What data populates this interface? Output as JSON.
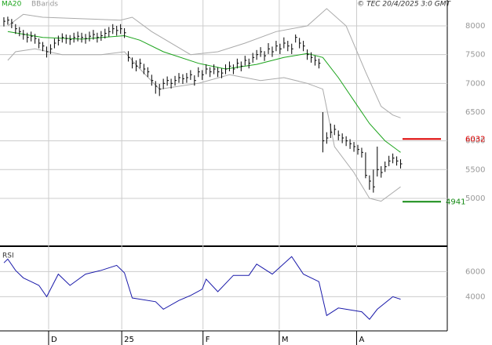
{
  "chart_data": {
    "type": "ohlc",
    "source": "© TEC 20/4/2025 3:0 GMT",
    "legend": [
      "MA20",
      "BBands"
    ],
    "legend_colors": [
      "#1aa31a",
      "#999999"
    ],
    "xlim": [
      -1,
      114
    ],
    "xticks": [
      {
        "value": 11.5,
        "label": "D"
      },
      {
        "value": 30.3,
        "label": "25"
      },
      {
        "value": 51.2,
        "label": "F"
      },
      {
        "value": 70.8,
        "label": "M"
      },
      {
        "value": 90.7,
        "label": "A"
      }
    ],
    "ylim": [
      4195,
      8450
    ],
    "yticks": [
      5000,
      5500,
      6000,
      6500,
      7000,
      7500,
      8000
    ],
    "grid": true,
    "bar_color": "#000000",
    "highs": [
      8150,
      8160,
      8120,
      8030,
      7980,
      7930,
      7880,
      7900,
      7860,
      7780,
      7720,
      7640,
      7680,
      7780,
      7830,
      7870,
      7850,
      7840,
      7880,
      7900,
      7880,
      7860,
      7900,
      7930,
      7880,
      7910,
      7950,
      7980,
      8030,
      8000,
      8030,
      7960,
      7560,
      7450,
      7400,
      7430,
      7340,
      7280,
      7150,
      7040,
      6990,
      7080,
      7120,
      7080,
      7130,
      7180,
      7160,
      7180,
      7230,
      7140,
      7280,
      7230,
      7330,
      7280,
      7330,
      7280,
      7260,
      7330,
      7380,
      7330,
      7430,
      7380,
      7480,
      7430,
      7530,
      7580,
      7630,
      7560,
      7700,
      7640,
      7740,
      7690,
      7800,
      7740,
      7690,
      7850,
      7790,
      7740,
      7590,
      7540,
      7480,
      7430,
      6500,
      6150,
      6300,
      6280,
      6180,
      6130,
      6080,
      6030,
      5980,
      5930,
      5880,
      5800,
      5400,
      5500,
      5900,
      5560,
      5640,
      5740,
      5780,
      5730,
      5680
    ],
    "lows": [
      7990,
      8020,
      7960,
      7860,
      7820,
      7760,
      7710,
      7730,
      7690,
      7610,
      7560,
      7450,
      7510,
      7610,
      7660,
      7710,
      7690,
      7670,
      7710,
      7730,
      7710,
      7690,
      7730,
      7760,
      7710,
      7740,
      7780,
      7810,
      7860,
      7830,
      7860,
      7790,
      7380,
      7260,
      7210,
      7260,
      7160,
      7110,
      6960,
      6820,
      6780,
      6900,
      6960,
      6910,
      6960,
      7010,
      6990,
      7010,
      7060,
      6960,
      7110,
      7060,
      7160,
      7110,
      7160,
      7110,
      7090,
      7160,
      7210,
      7160,
      7260,
      7210,
      7310,
      7260,
      7360,
      7410,
      7460,
      7390,
      7510,
      7460,
      7560,
      7510,
      7610,
      7560,
      7510,
      7710,
      7610,
      7560,
      7410,
      7360,
      7310,
      7260,
      5800,
      5950,
      6050,
      6100,
      6010,
      5960,
      5910,
      5860,
      5810,
      5760,
      5710,
      5350,
      5150,
      5100,
      5380,
      5360,
      5460,
      5560,
      5610,
      5570,
      5520
    ],
    "closes": [
      8080,
      8100,
      8050,
      7950,
      7900,
      7850,
      7800,
      7820,
      7780,
      7700,
      7650,
      7550,
      7600,
      7700,
      7750,
      7800,
      7780,
      7760,
      7800,
      7820,
      7800,
      7780,
      7820,
      7850,
      7800,
      7830,
      7870,
      7900,
      7950,
      7920,
      7950,
      7880,
      7450,
      7350,
      7300,
      7350,
      7250,
      7200,
      7050,
      6950,
      6900,
      7000,
      7050,
      7000,
      7050,
      7100,
      7080,
      7100,
      7150,
      7050,
      7200,
      7150,
      7250,
      7200,
      7250,
      7200,
      7180,
      7250,
      7300,
      7250,
      7350,
      7300,
      7400,
      7350,
      7450,
      7500,
      7550,
      7480,
      7600,
      7550,
      7650,
      7600,
      7700,
      7650,
      7600,
      7800,
      7700,
      7650,
      7500,
      7450,
      7400,
      7350,
      6000,
      6050,
      6150,
      6200,
      6100,
      6050,
      6000,
      5950,
      5900,
      5850,
      5800,
      5400,
      5300,
      5200,
      5500,
      5450,
      5550,
      5650,
      5700,
      5650,
      5600
    ],
    "lines": [
      {
        "name": "MA20",
        "color": "#1aa31a",
        "x": [
          1,
          10,
          20,
          31,
          35,
          41,
          50,
          57,
          65,
          72,
          78,
          82,
          86,
          90,
          94,
          98,
          102
        ],
        "values": [
          7900,
          7800,
          7770,
          7830,
          7750,
          7550,
          7350,
          7250,
          7330,
          7450,
          7520,
          7450,
          7100,
          6700,
          6300,
          6000,
          5800
        ]
      },
      {
        "color": "#aaaaaa",
        "x": [
          1,
          5,
          10,
          30,
          33,
          38,
          48,
          55,
          62,
          70,
          78,
          83,
          88,
          93,
          97,
          100,
          102
        ],
        "values": [
          8000,
          8200,
          8150,
          8100,
          8150,
          7900,
          7500,
          7550,
          7700,
          7900,
          8000,
          8300,
          8000,
          7200,
          6600,
          6450,
          6400
        ]
      },
      {
        "color": "#aaaaaa",
        "x": [
          1,
          3,
          8,
          15,
          25,
          31,
          35,
          40,
          50,
          58,
          66,
          72,
          78,
          82,
          85,
          90,
          94,
          97,
          100,
          102
        ],
        "values": [
          7400,
          7550,
          7600,
          7500,
          7500,
          7550,
          7250,
          6900,
          7000,
          7150,
          7050,
          7100,
          7000,
          6900,
          5900,
          5450,
          5000,
          4950,
          5100,
          5200
        ]
      }
    ],
    "levels": [
      {
        "value": 6032,
        "label": "6032",
        "color": "#dd0000"
      },
      {
        "value": 4941,
        "label": "4941",
        "color": "#138a13"
      }
    ],
    "rsi": {
      "title": "RSI",
      "color": "#1a1aaa",
      "ylim": [
        14,
        79
      ],
      "yticks": [
        {
          "value": 40,
          "label": "4000"
        },
        {
          "value": 60,
          "label": "6000"
        }
      ],
      "x": [
        0,
        1,
        3,
        5,
        7,
        9,
        11,
        14,
        17,
        21,
        25,
        29,
        31,
        33,
        39,
        41,
        45,
        48,
        51,
        52,
        55,
        59,
        63,
        65,
        69,
        74,
        77,
        81,
        83,
        86,
        92,
        94,
        96,
        100,
        102
      ],
      "values": [
        67,
        70,
        61,
        55,
        52,
        49,
        40,
        58,
        49,
        58,
        61,
        65,
        59,
        39,
        36,
        30,
        37,
        41,
        46,
        54,
        44,
        57,
        57,
        66,
        58,
        72,
        58,
        52,
        25,
        31,
        28,
        22,
        30,
        40,
        38
      ]
    }
  }
}
